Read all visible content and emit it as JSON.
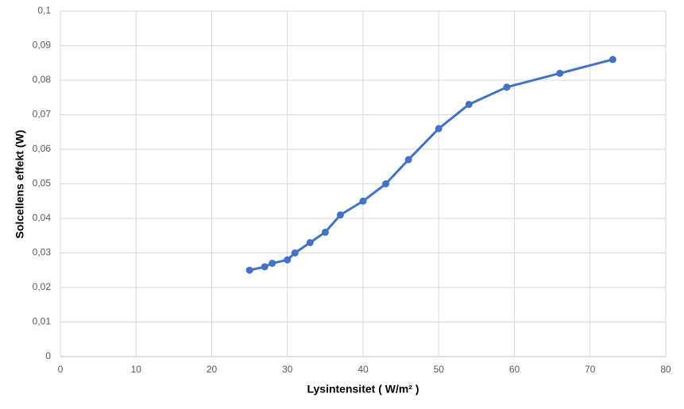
{
  "chart_data": {
    "type": "line",
    "x_label": "Lysintensitet ( W/m² )",
    "y_label": "Solcellens effekt (W)",
    "x": [
      25,
      27,
      28,
      30,
      31,
      33,
      35,
      37,
      40,
      43,
      46,
      50,
      54,
      59,
      66,
      73
    ],
    "series": [
      {
        "color": "#4472c4",
        "values": [
          0.025,
          0.026,
          0.027,
          0.028,
          0.03,
          0.033,
          0.036,
          0.041,
          0.045,
          0.05,
          0.057,
          0.066,
          0.073,
          0.078,
          0.082,
          0.086
        ]
      }
    ],
    "xlim": [
      0,
      80
    ],
    "xticks": [
      0,
      10,
      20,
      30,
      40,
      50,
      60,
      70,
      80
    ],
    "ylim": [
      0,
      0.1
    ],
    "yticks": [
      0,
      {
        "value": 0.01,
        "label": "0,01"
      },
      {
        "value": 0.02,
        "label": "0,02"
      },
      {
        "value": 0.03,
        "label": "0,03"
      },
      {
        "value": 0.04,
        "label": "0,04"
      },
      {
        "value": 0.05,
        "label": "0,05"
      },
      {
        "value": 0.06,
        "label": "0,06"
      },
      {
        "value": 0.07,
        "label": "0,07"
      },
      {
        "value": 0.08,
        "label": "0,08"
      },
      {
        "value": 0.09,
        "label": "0,09"
      },
      {
        "value": 0.1,
        "label": "0,1"
      }
    ],
    "grid": true
  }
}
